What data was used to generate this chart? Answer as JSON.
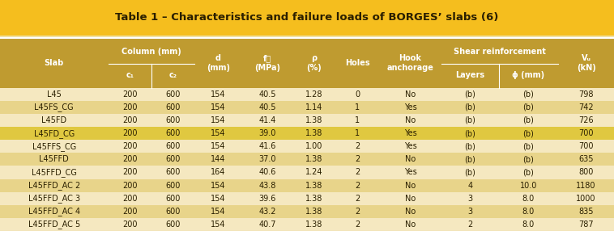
{
  "title": "Table 1 – Characteristics and failure loads of BORGES’ slabs (6)",
  "title_bg": "#F5BE1E",
  "header_bg": "#BF9B30",
  "header_text_color": "#FFFFFF",
  "row_bg_light": "#F5E8C0",
  "row_bg_dark": "#E8D48A",
  "row_bg_highlight": "#E0C840",
  "text_color": "#2A1F00",
  "rows": [
    [
      "L45",
      200,
      600,
      154,
      "40.5",
      "1.28",
      0,
      "No",
      "(b)",
      "(b)",
      798
    ],
    [
      "L45FS_CG",
      200,
      600,
      154,
      "40.5",
      "1.14",
      1,
      "Yes",
      "(b)",
      "(b)",
      742
    ],
    [
      "L45FD",
      200,
      600,
      154,
      "41.4",
      "1.38",
      1,
      "No",
      "(b)",
      "(b)",
      726
    ],
    [
      "L45FD_CG",
      200,
      600,
      154,
      "39.0",
      "1.38",
      1,
      "Yes",
      "(b)",
      "(b)",
      700
    ],
    [
      "L45FFS_CG",
      200,
      600,
      154,
      "41.6",
      "1.00",
      2,
      "Yes",
      "(b)",
      "(b)",
      700
    ],
    [
      "L45FFD",
      200,
      600,
      144,
      "37.0",
      "1.38",
      2,
      "No",
      "(b)",
      "(b)",
      635
    ],
    [
      "L45FFD_CG",
      200,
      600,
      164,
      "40.6",
      "1.24",
      2,
      "Yes",
      "(b)",
      "(b)",
      800
    ],
    [
      "L45FFD_AC 2",
      200,
      600,
      154,
      "43.8",
      "1.38",
      2,
      "No",
      4,
      "10.0",
      1180
    ],
    [
      "L45FFD_AC 3",
      200,
      600,
      154,
      "39.6",
      "1.38",
      2,
      "No",
      3,
      "8.0",
      1000
    ],
    [
      "L45FFD_AC 4",
      200,
      600,
      154,
      "43.2",
      "1.38",
      2,
      "No",
      3,
      "8.0",
      835
    ],
    [
      "L45FFD_AC 5",
      200,
      600,
      154,
      "40.7",
      "1.38",
      2,
      "No",
      2,
      "8.0",
      787
    ]
  ],
  "highlight_rows": [
    3
  ],
  "col_widths_rel": [
    1.55,
    0.62,
    0.62,
    0.68,
    0.72,
    0.62,
    0.62,
    0.9,
    0.82,
    0.85,
    0.8
  ]
}
